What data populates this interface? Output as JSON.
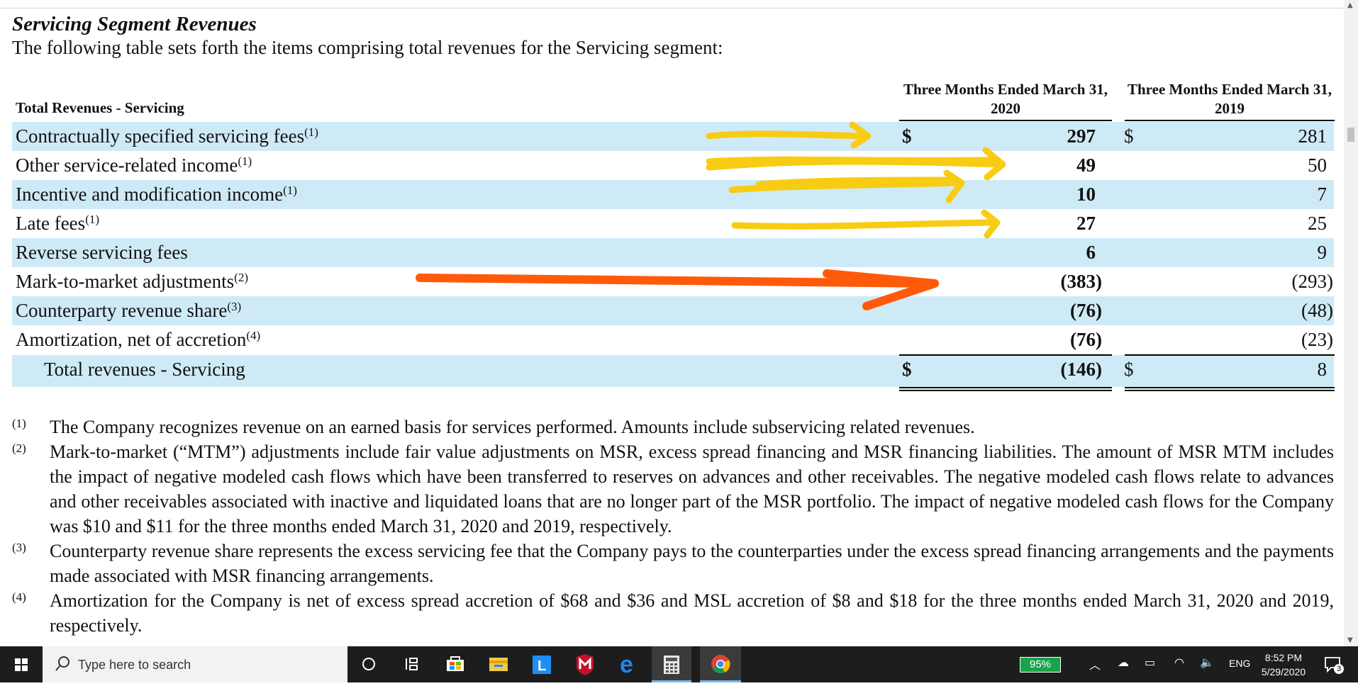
{
  "section_title": "Servicing Segment Revenues",
  "intro_text": "The following table sets forth the items comprising total revenues for the Servicing segment:",
  "table": {
    "header_label": "Total Revenues - Servicing",
    "col1_header": "Three Months Ended March 31, 2020",
    "col2_header": "Three Months Ended March 31, 2019",
    "rows": [
      {
        "label": "Contractually specified servicing fees",
        "note": "(1)",
        "cur2020": "$",
        "v2020": "297",
        "cur2019": "$",
        "v2019": "281"
      },
      {
        "label": "Other service-related income",
        "note": "(1)",
        "cur2020": "",
        "v2020": "49",
        "cur2019": "",
        "v2019": "50"
      },
      {
        "label": "Incentive and modification income",
        "note": "(1)",
        "cur2020": "",
        "v2020": "10",
        "cur2019": "",
        "v2019": "7"
      },
      {
        "label": "Late fees",
        "note": "(1)",
        "cur2020": "",
        "v2020": "27",
        "cur2019": "",
        "v2019": "25"
      },
      {
        "label": "Reverse servicing fees",
        "note": "",
        "cur2020": "",
        "v2020": "6",
        "cur2019": "",
        "v2019": "9"
      },
      {
        "label": "Mark-to-market adjustments",
        "note": "(2)",
        "cur2020": "",
        "v2020": "(383)",
        "cur2019": "",
        "v2019": "(293)"
      },
      {
        "label": "Counterparty revenue share",
        "note": "(3)",
        "cur2020": "",
        "v2020": "(76)",
        "cur2019": "",
        "v2019": "(48)"
      },
      {
        "label": "Amortization, net of accretion",
        "note": "(4)",
        "cur2020": "",
        "v2020": "(76)",
        "cur2019": "",
        "v2019": "(23)"
      },
      {
        "label": "Total revenues - Servicing",
        "note": "",
        "cur2020": "$",
        "v2020": "(146)",
        "cur2019": "$",
        "v2019": "8"
      }
    ]
  },
  "footnotes": [
    {
      "marker": "(1)",
      "text": "The Company recognizes revenue on an earned basis for services performed. Amounts include subservicing related revenues."
    },
    {
      "marker": "(2)",
      "text": "Mark-to-market (“MTM”) adjustments include fair value adjustments on MSR, excess spread financing and MSR financing liabilities. The amount of MSR MTM includes the impact of negative modeled cash flows which have been transferred to reserves on advances and other receivables. The negative modeled cash flows relate to advances and other receivables associated with inactive and liquidated loans that are no longer part of the MSR portfolio. The impact of negative modeled cash flows for the Company was $10 and $11 for the three months ended March 31, 2020 and 2019, respectively."
    },
    {
      "marker": "(3)",
      "text": "Counterparty revenue share represents the excess servicing fee that the Company pays to the counterparties under the excess spread financing arrangements and the payments made associated with MSR financing arrangements."
    },
    {
      "marker": "(4)",
      "text": "Amortization for the Company is net of excess spread accretion of $68 and $36 and MSL accretion of $8 and $18 for the three months ended March 31, 2020 and 2019, respectively."
    }
  ],
  "annotation_colors": {
    "yellow": "#f8cc12",
    "orange": "#ff5a0a"
  },
  "taskbar": {
    "search_placeholder": "Type here to search",
    "battery": "95%",
    "language": "ENG",
    "time": "8:52 PM",
    "date": "5/29/2020",
    "notification_count": "3",
    "apps": [
      "cortana-icon",
      "task-view-icon",
      "store-icon",
      "file-explorer-icon",
      "l-app-icon",
      "mcafee-icon",
      "edge-icon",
      "calculator-icon",
      "chrome-icon"
    ]
  }
}
